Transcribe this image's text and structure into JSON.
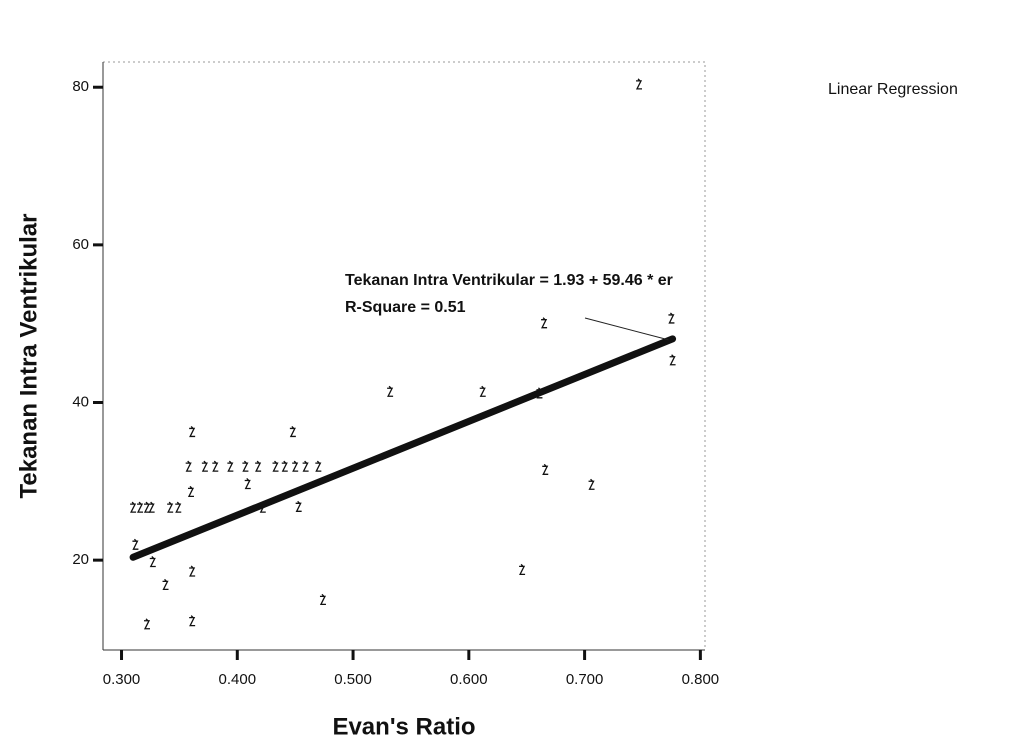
{
  "chart_data": {
    "type": "scatter",
    "x_label": "Evan's Ratio",
    "y_label": "Tekanan Intra Ventrikular",
    "legend_label": "Linear Regression",
    "annotation": "Tekanan Intra Ventrikular = 1.93 + 59.46 * er",
    "r_square_label": "R-Square = 0.51",
    "regression": {
      "intercept": 1.93,
      "slope": 59.46,
      "r_square": 0.51
    },
    "color": "#111111",
    "x": [
      0.747,
      0.775,
      0.776,
      0.665,
      0.532,
      0.612,
      0.661,
      0.361,
      0.448,
      0.358,
      0.372,
      0.381,
      0.394,
      0.407,
      0.418,
      0.433,
      0.441,
      0.45,
      0.459,
      0.47,
      0.36,
      0.409,
      0.666,
      0.706,
      0.31,
      0.316,
      0.322,
      0.326,
      0.342,
      0.349,
      0.422,
      0.453,
      0.312,
      0.327,
      0.361,
      0.646,
      0.338,
      0.474,
      0.322,
      0.361
    ],
    "y": [
      80.3,
      50.6,
      45.3,
      50,
      41.3,
      41.3,
      41.1,
      36.2,
      36.2,
      31.8,
      31.8,
      31.8,
      31.8,
      31.8,
      31.8,
      31.8,
      31.8,
      31.8,
      31.8,
      31.8,
      28.6,
      29.6,
      31.4,
      29.5,
      26.6,
      26.6,
      26.6,
      26.6,
      26.6,
      26.6,
      26.6,
      26.7,
      21.9,
      19.7,
      18.5,
      18.7,
      16.8,
      14.9,
      11.8,
      12.2
    ],
    "xlim": [
      0.284,
      0.804
    ],
    "ylim": [
      8.6,
      83.2
    ],
    "xticks": [
      {
        "value": 0.3,
        "label": "0.300"
      },
      {
        "value": 0.4,
        "label": "0.400"
      },
      {
        "value": 0.5,
        "label": "0.500"
      },
      {
        "value": 0.6,
        "label": "0.600"
      },
      {
        "value": 0.7,
        "label": "0.700"
      },
      {
        "value": 0.8,
        "label": "0.800"
      }
    ],
    "yticks": [
      20,
      40,
      60,
      80
    ]
  }
}
